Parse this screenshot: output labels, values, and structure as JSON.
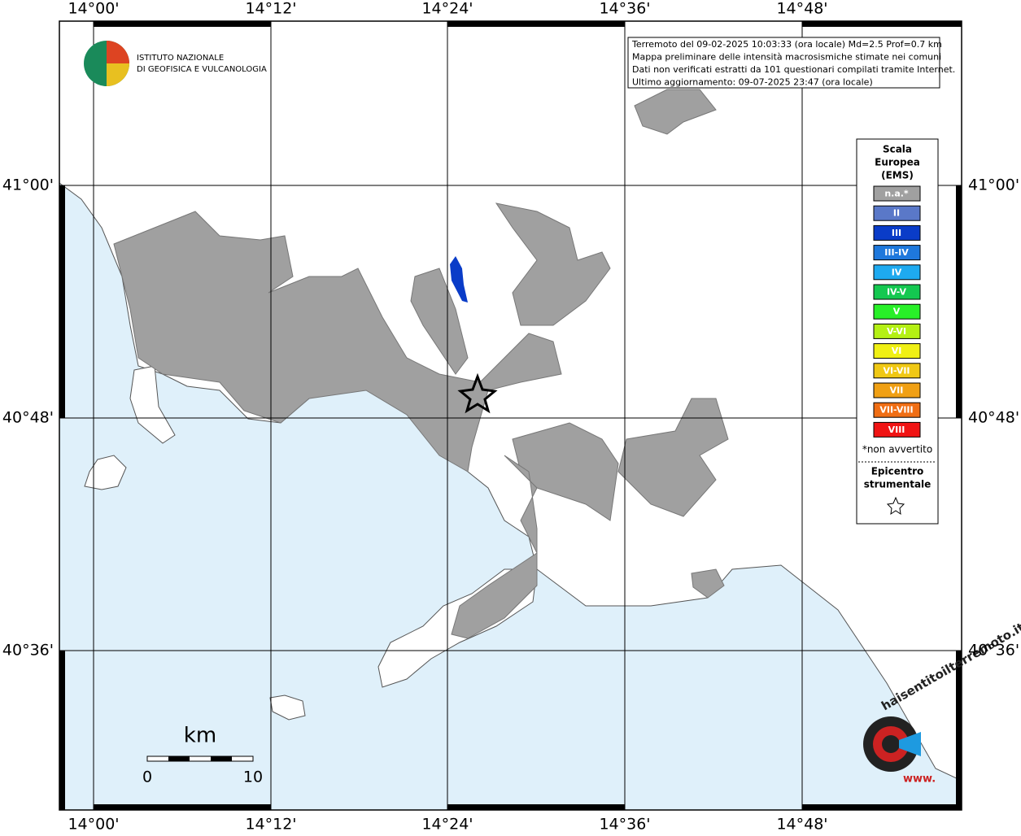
{
  "info_box": {
    "lines": [
      "Terremoto del 09-02-2025 10:03:33 (ora locale) Md=2.5 Prof=0.7 km",
      "Mappa preliminare delle intensità macrosismiche stimate nei comuni",
      "Dati non verificati estratti da 101 questionari compilati tramite Internet.",
      "Ultimo aggiornamento: 09-07-2025 23:47 (ora locale)"
    ]
  },
  "logo": {
    "lines": [
      "ISTITUTO NAZIONALE",
      "DI GEOFISICA E VULCANOLOGIA"
    ]
  },
  "longitude_labels": [
    "14°00'",
    "14°12'",
    "14°24'",
    "14°36'",
    "14°48'"
  ],
  "latitude_labels": [
    "41°00'",
    "40°48'",
    "40°36'"
  ],
  "legend": {
    "title": [
      "Scala",
      "Europea",
      "(EMS)"
    ],
    "items": [
      {
        "label": "n.a.*",
        "color": "#a0a0a0"
      },
      {
        "label": "II",
        "color": "#5a78c8"
      },
      {
        "label": "III",
        "color": "#0a3cc8"
      },
      {
        "label": "III-IV",
        "color": "#1e78dc"
      },
      {
        "label": "IV",
        "color": "#1eaaf0"
      },
      {
        "label": "IV-V",
        "color": "#14c850"
      },
      {
        "label": "V",
        "color": "#28f028"
      },
      {
        "label": "V-VI",
        "color": "#b4f014"
      },
      {
        "label": "VI",
        "color": "#f0f014"
      },
      {
        "label": "VI-VII",
        "color": "#f0c814"
      },
      {
        "label": "VII",
        "color": "#f0a014"
      },
      {
        "label": "VII-VIII",
        "color": "#f06e14"
      },
      {
        "label": "VIII",
        "color": "#f01414"
      }
    ],
    "note": "*non avvertito",
    "epicenter": [
      "Epicentro",
      "strumentale"
    ]
  },
  "scale_bar": {
    "unit": "km",
    "labels": [
      "0",
      "10"
    ]
  },
  "site_logo": {
    "text": "haisentitoilterremoto.it",
    "url": "www."
  }
}
